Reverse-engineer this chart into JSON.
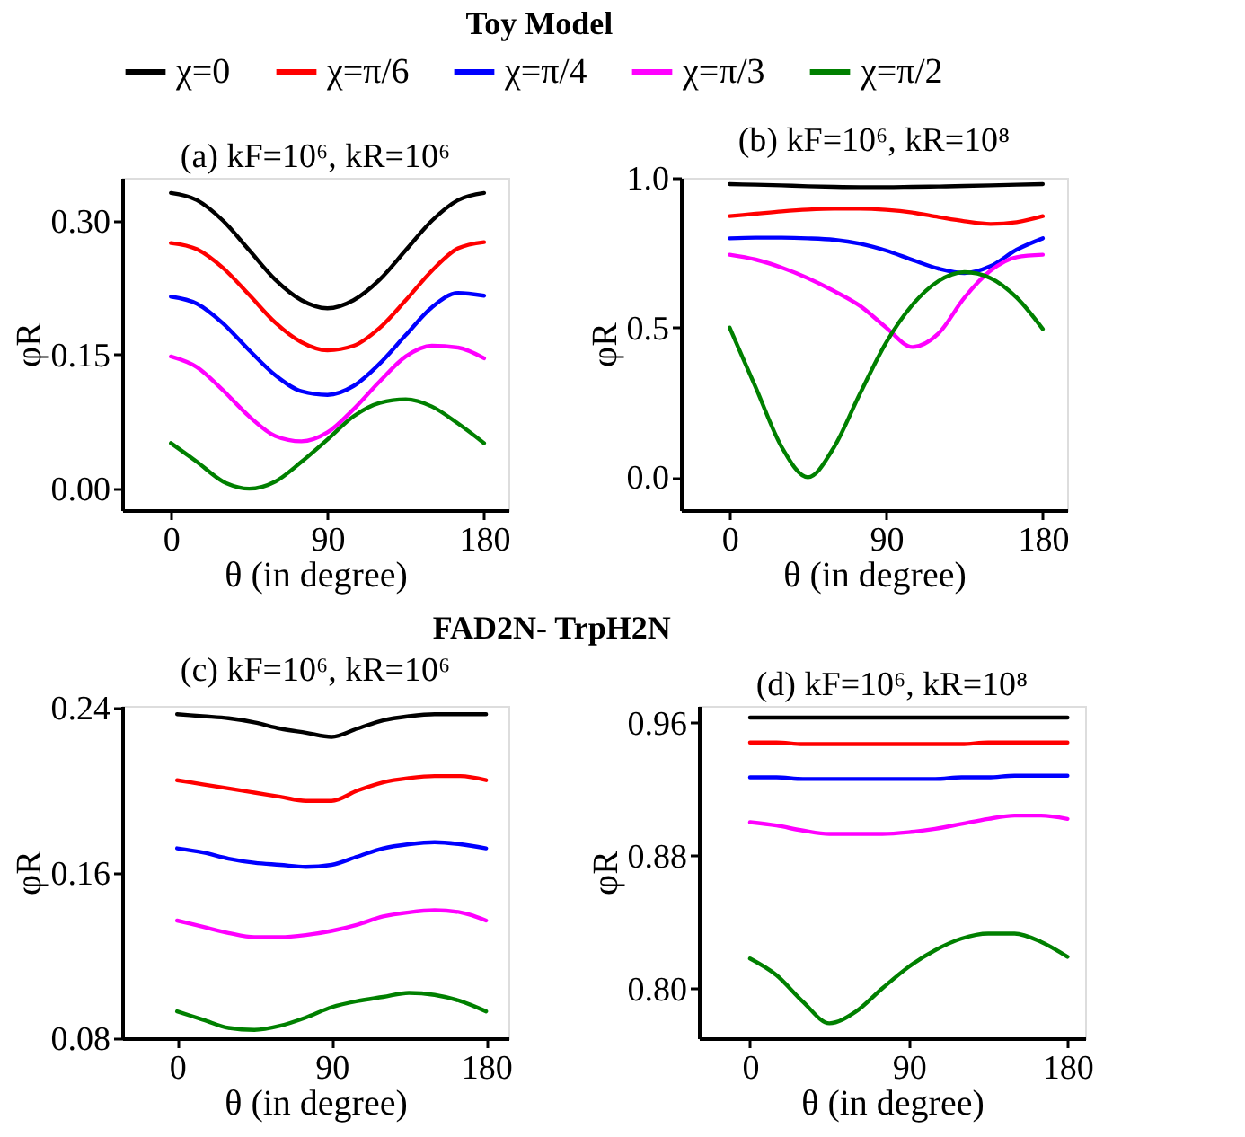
{
  "chart_data": [
    {
      "type": "line",
      "title": "(a) kF=10⁶, kR=10⁶",
      "xlabel": "θ (in degree)",
      "ylabel": "φR",
      "annotations": [
        "Toy Model"
      ],
      "legend": "top",
      "grid": false,
      "line_style": "solid",
      "marker": "none",
      "x": [
        0,
        15,
        30,
        45,
        60,
        75,
        90,
        105,
        120,
        135,
        150,
        165,
        180
      ],
      "xlim": [
        -28,
        194
      ],
      "xticks": [
        0,
        90,
        180
      ],
      "ylim": [
        -0.024,
        0.348
      ],
      "yticks": [
        {
          "value": 0,
          "label": "0.00"
        },
        {
          "value": 0.15,
          "label": "0.15"
        },
        {
          "value": 0.3,
          "label": "0.30"
        }
      ],
      "series": [
        {
          "name": "χ=0",
          "color": "#000000",
          "values": [
            0.331,
            0.323,
            0.3,
            0.267,
            0.234,
            0.211,
            0.202,
            0.211,
            0.234,
            0.267,
            0.3,
            0.323,
            0.331
          ]
        },
        {
          "name": "χ=π/6",
          "color": "#ff0000",
          "values": [
            0.275,
            0.268,
            0.247,
            0.217,
            0.186,
            0.164,
            0.155,
            0.16,
            0.18,
            0.211,
            0.244,
            0.269,
            0.276
          ]
        },
        {
          "name": "χ=π/4",
          "color": "#0000ff",
          "values": [
            0.215,
            0.207,
            0.185,
            0.155,
            0.127,
            0.109,
            0.105,
            0.115,
            0.14,
            0.172,
            0.203,
            0.219,
            0.216
          ]
        },
        {
          "name": "χ=π/3",
          "color": "#ff00ff",
          "values": [
            0.148,
            0.136,
            0.11,
            0.081,
            0.059,
            0.053,
            0.063,
            0.089,
            0.12,
            0.148,
            0.16,
            0.158,
            0.146
          ]
        },
        {
          "name": "χ=π/2",
          "color": "#008000",
          "values": [
            0.051,
            0.03,
            0.008,
            0.0,
            0.008,
            0.03,
            0.055,
            0.081,
            0.096,
            0.1,
            0.092,
            0.073,
            0.051
          ]
        }
      ]
    },
    {
      "type": "line",
      "title": "(b) kF=10⁶, kR=10⁸",
      "xlabel": "θ (in degree)",
      "ylabel": "φR",
      "grid": false,
      "line_style": "solid",
      "marker": "none",
      "x": [
        0,
        15,
        30,
        45,
        60,
        75,
        90,
        105,
        120,
        135,
        150,
        165,
        180
      ],
      "xlim": [
        -28,
        194
      ],
      "xticks": [
        0,
        90,
        180
      ],
      "ylim": [
        -0.11,
        1.0
      ],
      "yticks": [
        {
          "value": 0,
          "label": "0.0"
        },
        {
          "value": 0.5,
          "label": "0.5"
        },
        {
          "value": 1,
          "label": "1.0"
        }
      ],
      "series": [
        {
          "name": "χ=0",
          "color": "#000000",
          "values": [
            0.979,
            0.977,
            0.975,
            0.972,
            0.97,
            0.969,
            0.969,
            0.97,
            0.971,
            0.973,
            0.975,
            0.977,
            0.979
          ]
        },
        {
          "name": "χ=π/6",
          "color": "#ff0000",
          "values": [
            0.872,
            0.88,
            0.888,
            0.894,
            0.897,
            0.897,
            0.893,
            0.884,
            0.869,
            0.855,
            0.846,
            0.852,
            0.872
          ]
        },
        {
          "name": "χ=π/4",
          "color": "#0000ff",
          "values": [
            0.798,
            0.8,
            0.8,
            0.798,
            0.793,
            0.78,
            0.757,
            0.726,
            0.697,
            0.682,
            0.705,
            0.76,
            0.798
          ]
        },
        {
          "name": "χ=π/3",
          "color": "#ff00ff",
          "values": [
            0.743,
            0.727,
            0.7,
            0.665,
            0.622,
            0.572,
            0.5,
            0.435,
            0.48,
            0.6,
            0.69,
            0.735,
            0.743
          ]
        },
        {
          "name": "χ=π/2",
          "color": "#008000",
          "values": [
            0.5,
            0.3,
            0.1,
            0.0,
            0.1,
            0.28,
            0.45,
            0.575,
            0.655,
            0.685,
            0.665,
            0.6,
            0.495
          ]
        }
      ]
    },
    {
      "type": "line",
      "title": "(c) kF=10⁶, kR=10⁶",
      "xlabel": "θ (in degree)",
      "ylabel": "φR",
      "annotations": [
        "FAD2N- TrpH2N"
      ],
      "grid": false,
      "line_style": "solid",
      "marker": "none",
      "x": [
        0,
        15,
        30,
        45,
        60,
        75,
        90,
        105,
        120,
        135,
        150,
        165,
        180
      ],
      "xlim": [
        -32,
        193
      ],
      "xticks": [
        0,
        90,
        180
      ],
      "ylim": [
        0.08,
        0.241
      ],
      "yticks": [
        0.08,
        0.16,
        0.24
      ],
      "series": [
        {
          "name": "χ=0",
          "color": "#000000",
          "values": [
            0.237,
            0.236,
            0.235,
            0.233,
            0.23,
            0.228,
            0.226,
            0.23,
            0.234,
            0.236,
            0.237,
            0.237,
            0.237
          ]
        },
        {
          "name": "χ=π/6",
          "color": "#ff0000",
          "values": [
            0.205,
            0.203,
            0.201,
            0.199,
            0.197,
            0.195,
            0.195,
            0.2,
            0.204,
            0.206,
            0.207,
            0.207,
            0.205
          ]
        },
        {
          "name": "χ=π/4",
          "color": "#0000ff",
          "values": [
            0.172,
            0.17,
            0.167,
            0.165,
            0.164,
            0.163,
            0.164,
            0.168,
            0.172,
            0.174,
            0.175,
            0.174,
            0.172
          ]
        },
        {
          "name": "χ=π/3",
          "color": "#ff00ff",
          "values": [
            0.137,
            0.134,
            0.131,
            0.129,
            0.129,
            0.13,
            0.132,
            0.135,
            0.139,
            0.141,
            0.142,
            0.141,
            0.137
          ]
        },
        {
          "name": "χ=π/2",
          "color": "#008000",
          "values": [
            0.093,
            0.089,
            0.085,
            0.084,
            0.086,
            0.09,
            0.095,
            0.098,
            0.1,
            0.102,
            0.101,
            0.098,
            0.093
          ]
        }
      ]
    },
    {
      "type": "line",
      "title": "(d) kF=10⁶, kR=10⁸",
      "xlabel": "θ (in degree)",
      "ylabel": "φR",
      "grid": false,
      "line_style": "solid",
      "marker": "none",
      "x": [
        0,
        15,
        30,
        45,
        60,
        75,
        90,
        105,
        120,
        135,
        150,
        165,
        180
      ],
      "xlim": [
        -29,
        190
      ],
      "xticks": [
        0,
        90,
        180
      ],
      "ylim": [
        0.77,
        0.97
      ],
      "yticks": [
        {
          "value": 0.8,
          "label": "0.80"
        },
        {
          "value": 0.88,
          "label": "0.88"
        },
        {
          "value": 0.96,
          "label": "0.96"
        }
      ],
      "series": [
        {
          "name": "χ=0",
          "color": "#000000",
          "values": [
            0.963,
            0.963,
            0.963,
            0.963,
            0.963,
            0.963,
            0.963,
            0.963,
            0.963,
            0.963,
            0.963,
            0.963,
            0.963
          ]
        },
        {
          "name": "χ=π/6",
          "color": "#ff0000",
          "values": [
            0.948,
            0.948,
            0.947,
            0.947,
            0.947,
            0.947,
            0.947,
            0.947,
            0.947,
            0.948,
            0.948,
            0.948,
            0.948
          ]
        },
        {
          "name": "χ=π/4",
          "color": "#0000ff",
          "values": [
            0.927,
            0.927,
            0.926,
            0.926,
            0.926,
            0.926,
            0.926,
            0.926,
            0.927,
            0.927,
            0.928,
            0.928,
            0.928
          ]
        },
        {
          "name": "χ=π/3",
          "color": "#ff00ff",
          "values": [
            0.9,
            0.898,
            0.895,
            0.893,
            0.893,
            0.893,
            0.894,
            0.896,
            0.899,
            0.902,
            0.904,
            0.904,
            0.902
          ]
        },
        {
          "name": "χ=π/2",
          "color": "#008000",
          "values": [
            0.818,
            0.808,
            0.792,
            0.779,
            0.786,
            0.8,
            0.813,
            0.823,
            0.83,
            0.833,
            0.833,
            0.828,
            0.819
          ]
        }
      ]
    }
  ]
}
